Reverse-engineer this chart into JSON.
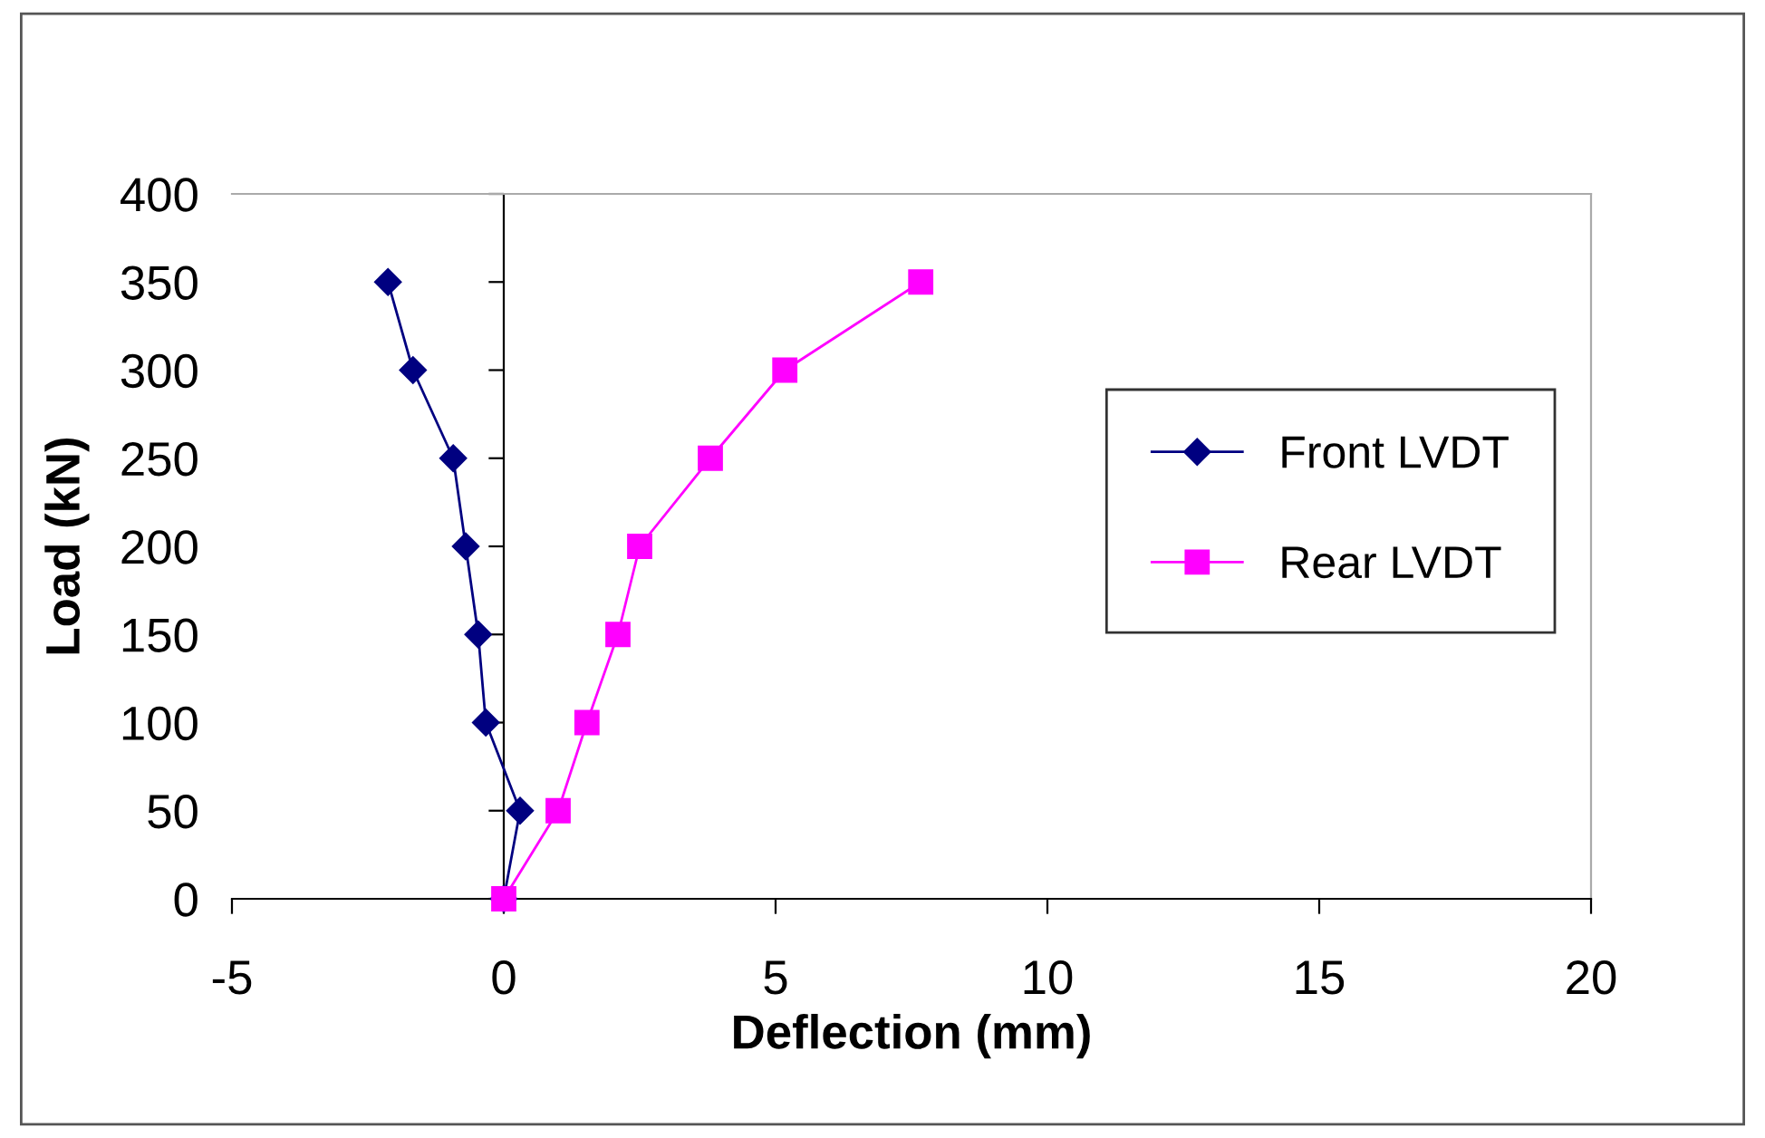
{
  "chart_data": {
    "type": "line",
    "xlabel": "Deflection (mm)",
    "ylabel": "Load (kN)",
    "xlim": [
      -5,
      20
    ],
    "xticks": [
      -5,
      0,
      5,
      10,
      15,
      20
    ],
    "ylim": [
      0,
      400
    ],
    "yticks": [
      0,
      50,
      100,
      150,
      200,
      250,
      300,
      350,
      400
    ],
    "legend": "right",
    "series": [
      {
        "name": "Front LVDT",
        "color": "#000080",
        "marker": "diamond",
        "x": [
          0,
          0.3,
          -0.33,
          -0.47,
          -0.7,
          -0.93,
          -1.67,
          -2.13
        ],
        "values": [
          0,
          50,
          100,
          150,
          200,
          250,
          300,
          350
        ]
      },
      {
        "name": "Rear LVDT",
        "color": "#ff00ff",
        "marker": "square",
        "x": [
          0,
          1.0,
          1.53,
          2.1,
          2.5,
          3.8,
          5.17,
          7.67
        ],
        "values": [
          0,
          50,
          100,
          150,
          200,
          250,
          300,
          350
        ]
      }
    ]
  }
}
